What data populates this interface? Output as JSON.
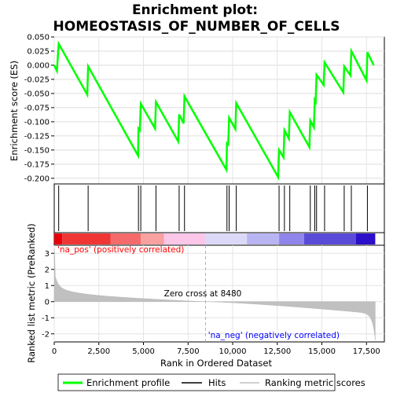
{
  "chart_data": {
    "type": "line",
    "title_line1": "Enrichment plot:",
    "title_line2": "HOMEOSTASIS_OF_NUMBER_OF_CELLS",
    "es_panel": {
      "ylabel": "Enrichment score (ES)",
      "ylim": [
        -0.21,
        0.05
      ],
      "yticks": [
        "0.050",
        "0.025",
        "0.000",
        "-0.025",
        "-0.050",
        "-0.075",
        "-0.100",
        "-0.125",
        "-0.150",
        "-0.175",
        "-0.200"
      ],
      "ytick_values": [
        0.05,
        0.025,
        0.0,
        -0.025,
        -0.05,
        -0.075,
        -0.1,
        -0.125,
        -0.15,
        -0.175,
        -0.2
      ],
      "line_color": "#00ff00",
      "points": [
        [
          0,
          0.0
        ],
        [
          150,
          -0.01
        ],
        [
          250,
          0.038
        ],
        [
          1850,
          -0.052
        ],
        [
          1900,
          -0.002
        ],
        [
          4700,
          -0.16
        ],
        [
          4720,
          -0.112
        ],
        [
          4800,
          -0.115
        ],
        [
          4850,
          -0.068
        ],
        [
          5650,
          -0.112
        ],
        [
          5700,
          -0.065
        ],
        [
          6950,
          -0.135
        ],
        [
          7000,
          -0.087
        ],
        [
          7250,
          -0.103
        ],
        [
          7300,
          -0.055
        ],
        [
          9650,
          -0.185
        ],
        [
          9680,
          -0.138
        ],
        [
          9750,
          -0.14
        ],
        [
          9800,
          -0.093
        ],
        [
          10150,
          -0.113
        ],
        [
          10200,
          -0.067
        ],
        [
          12550,
          -0.198
        ],
        [
          12600,
          -0.15
        ],
        [
          12850,
          -0.163
        ],
        [
          12900,
          -0.115
        ],
        [
          13150,
          -0.13
        ],
        [
          13200,
          -0.083
        ],
        [
          14300,
          -0.145
        ],
        [
          14350,
          -0.098
        ],
        [
          14550,
          -0.11
        ],
        [
          14600,
          -0.062
        ],
        [
          14650,
          -0.065
        ],
        [
          14700,
          -0.017
        ],
        [
          15100,
          -0.035
        ],
        [
          15150,
          0.005
        ],
        [
          16200,
          -0.048
        ],
        [
          16250,
          -0.002
        ],
        [
          16600,
          -0.018
        ],
        [
          16650,
          0.025
        ],
        [
          17500,
          -0.027
        ],
        [
          17550,
          0.023
        ],
        [
          17900,
          0.0
        ]
      ]
    },
    "hits": [
      250,
      1900,
      4720,
      4850,
      5700,
      7000,
      7300,
      9680,
      9800,
      10200,
      12600,
      12900,
      13200,
      14350,
      14600,
      14700,
      15150,
      16250,
      16650,
      17550
    ],
    "rank_panel": {
      "ylabel": "Ranked list metric (PreRanked)",
      "xlabel": "Rank in Ordered Dataset",
      "ylim": [
        -2.5,
        3.5
      ],
      "yticks": [
        "3",
        "2",
        "1",
        "0",
        "-1",
        "-2"
      ],
      "ytick_values": [
        3,
        2,
        1,
        0,
        -1,
        -2
      ],
      "fill_color": "#c0c0c0",
      "zero_cross_rank": 8480,
      "zero_cross_label": "Zero cross at 8480",
      "pos_label": "'na_pos' (positively correlated)",
      "neg_label": "'na_neg' (negatively correlated)",
      "pos_label_color": "#ff0000",
      "neg_label_color": "#0000ff"
    },
    "x_axis": {
      "xlim": [
        0,
        18500
      ],
      "n_ranks": 17990,
      "xticks": [
        "0",
        "2,500",
        "5,000",
        "7,500",
        "10,000",
        "12,500",
        "15,000",
        "17,500"
      ],
      "xtick_values": [
        0,
        2500,
        5000,
        7500,
        10000,
        12500,
        15000,
        17500
      ]
    },
    "legend": {
      "placement": "bottom",
      "items": [
        {
          "label": "Enrichment profile",
          "color": "#00ff00"
        },
        {
          "label": "Hits",
          "color": "#000000"
        },
        {
          "label": "Ranking metric scores",
          "color": "#c0c0c0"
        }
      ]
    },
    "colorbar_stops": [
      {
        "rank": 0,
        "color": "#e8000a"
      },
      {
        "rank": 450,
        "color": "#f03535"
      },
      {
        "rank": 3150,
        "color": "#f56a6a"
      },
      {
        "rank": 4850,
        "color": "#f9a0a0"
      },
      {
        "rank": 6150,
        "color": "#fbc6e8"
      },
      {
        "rank": 8480,
        "color": "#dcd9f8"
      },
      {
        "rank": 10800,
        "color": "#b9b4f2"
      },
      {
        "rank": 12600,
        "color": "#8f85ea"
      },
      {
        "rank": 14000,
        "color": "#5a4ad8"
      },
      {
        "rank": 16900,
        "color": "#2b0fc9"
      }
    ]
  }
}
